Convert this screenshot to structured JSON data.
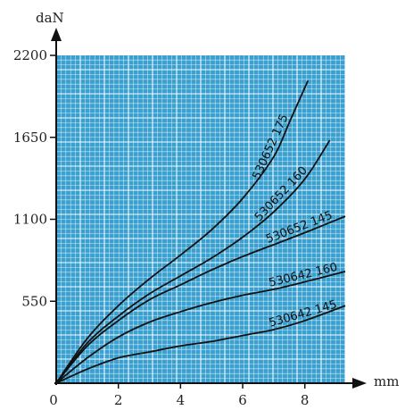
{
  "chart_data": {
    "type": "line",
    "ylabel": "daN",
    "xlabel": "mm",
    "xlim": [
      0,
      9.3
    ],
    "ylim": [
      0,
      2200
    ],
    "x_ticks": [
      0,
      2,
      4,
      6,
      8
    ],
    "y_ticks": [
      550,
      1100,
      1650,
      2200
    ],
    "grid": true,
    "colors": {
      "plot_background": "#3aa0d0",
      "grid": "#ffffff",
      "curves": "#111111"
    },
    "series": [
      {
        "name": "530652 175",
        "x": [
          0,
          1,
          2,
          3,
          4,
          5,
          6,
          7,
          7.5,
          8.1
        ],
        "y": [
          0,
          300,
          520,
          700,
          860,
          1030,
          1240,
          1520,
          1750,
          2030
        ]
      },
      {
        "name": "530652 160",
        "x": [
          0,
          1,
          2,
          3,
          4,
          5,
          6,
          7,
          8,
          8.8
        ],
        "y": [
          0,
          270,
          450,
          600,
          720,
          840,
          980,
          1150,
          1370,
          1630
        ]
      },
      {
        "name": "530652 145",
        "x": [
          0,
          1,
          2,
          3,
          4,
          5,
          6,
          7,
          8,
          9.3
        ],
        "y": [
          0,
          250,
          420,
          560,
          660,
          760,
          850,
          930,
          1010,
          1120
        ]
      },
      {
        "name": "530642 160",
        "x": [
          0,
          1,
          2,
          3,
          4,
          5,
          6,
          7,
          8,
          9.3
        ],
        "y": [
          0,
          170,
          310,
          410,
          480,
          540,
          590,
          630,
          680,
          750
        ]
      },
      {
        "name": "530642 145",
        "x": [
          0,
          1,
          2,
          3,
          4,
          5,
          6,
          7,
          8,
          9.3
        ],
        "y": [
          0,
          95,
          170,
          210,
          250,
          280,
          320,
          360,
          420,
          520
        ]
      }
    ]
  }
}
